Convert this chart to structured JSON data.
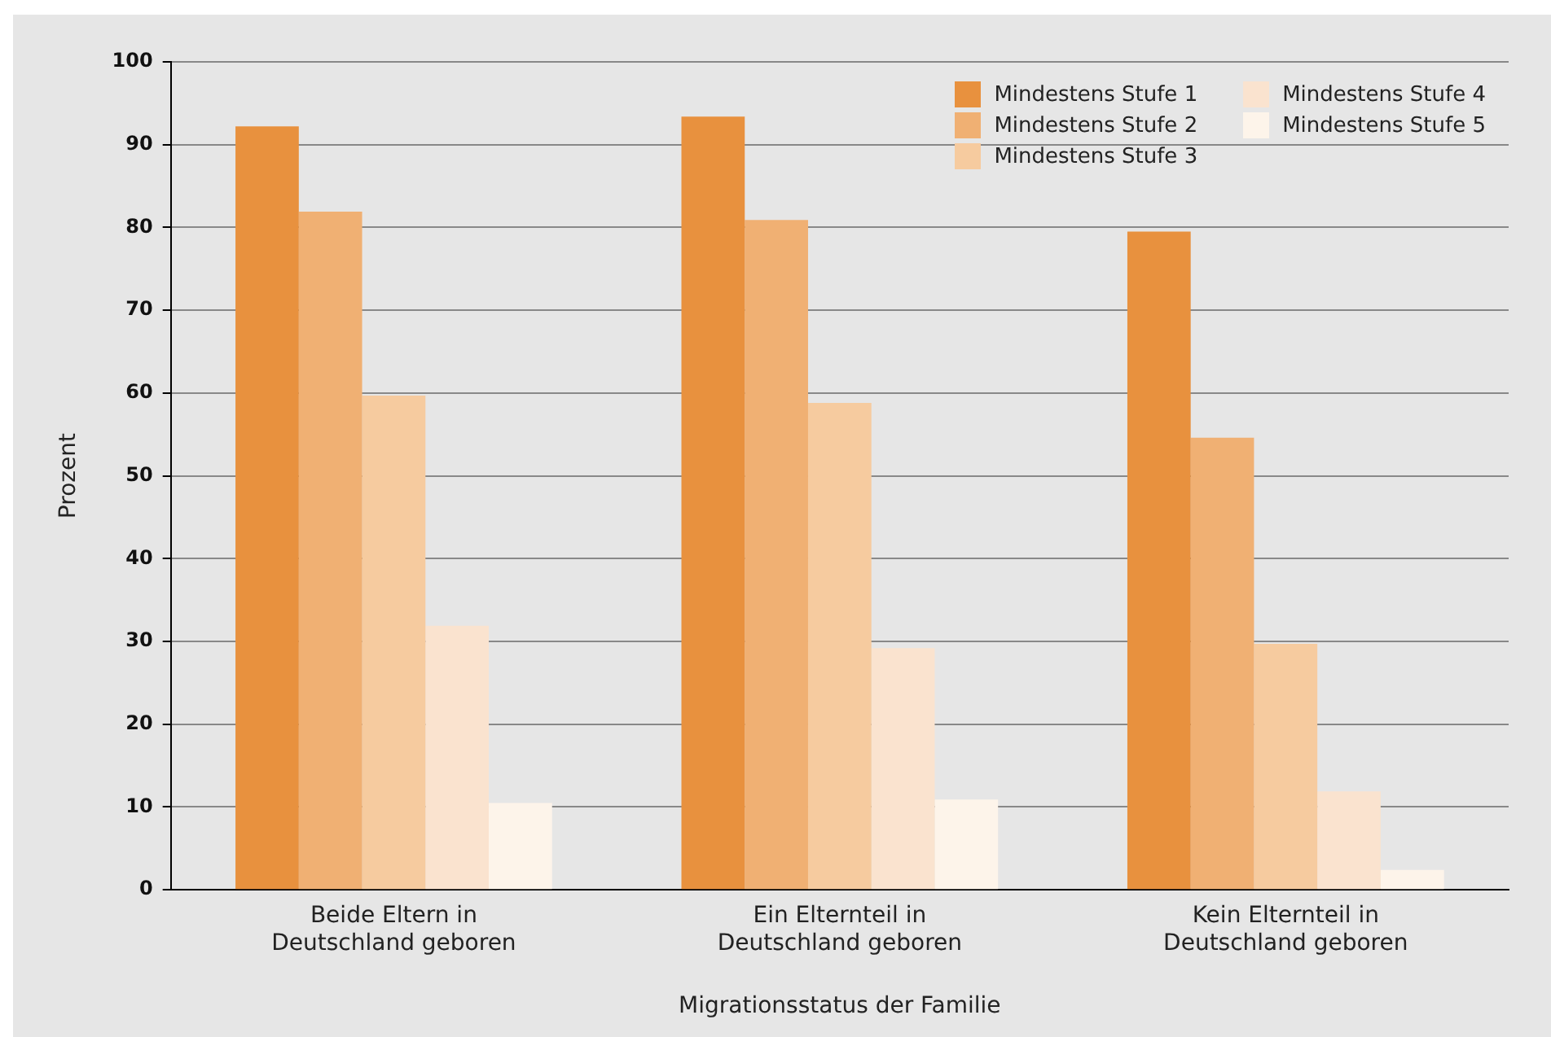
{
  "chart_data": {
    "type": "bar",
    "xlabel": "Migrationsstatus der Familie",
    "ylabel": "Prozent",
    "categories": [
      "Beide Eltern in Deutschland geboren",
      "Ein Elternteil in Deutschland geboren",
      "Kein Elternteil in Deutschland geboren"
    ],
    "series": [
      {
        "name": "Mindestens Stufe 1",
        "color": "#e8913e",
        "values": [
          92.2,
          93.4,
          79.5
        ]
      },
      {
        "name": "Mindestens Stufe 2",
        "color": "#f0b073",
        "values": [
          81.9,
          80.9,
          54.6
        ]
      },
      {
        "name": "Mindestens Stufe 3",
        "color": "#f6cb9f",
        "values": [
          59.7,
          58.8,
          29.7
        ]
      },
      {
        "name": "Mindestens Stufe 4",
        "color": "#fae3cf",
        "values": [
          31.9,
          29.2,
          11.9
        ]
      },
      {
        "name": "Mindestens Stufe 5",
        "color": "#fdf4ea",
        "values": [
          10.5,
          10.9,
          2.4
        ]
      }
    ],
    "ylim": [
      0,
      100
    ],
    "yticks": [
      0,
      10,
      20,
      30,
      40,
      50,
      60,
      70,
      80,
      90,
      100
    ],
    "grid": "y",
    "legend": "top right"
  }
}
